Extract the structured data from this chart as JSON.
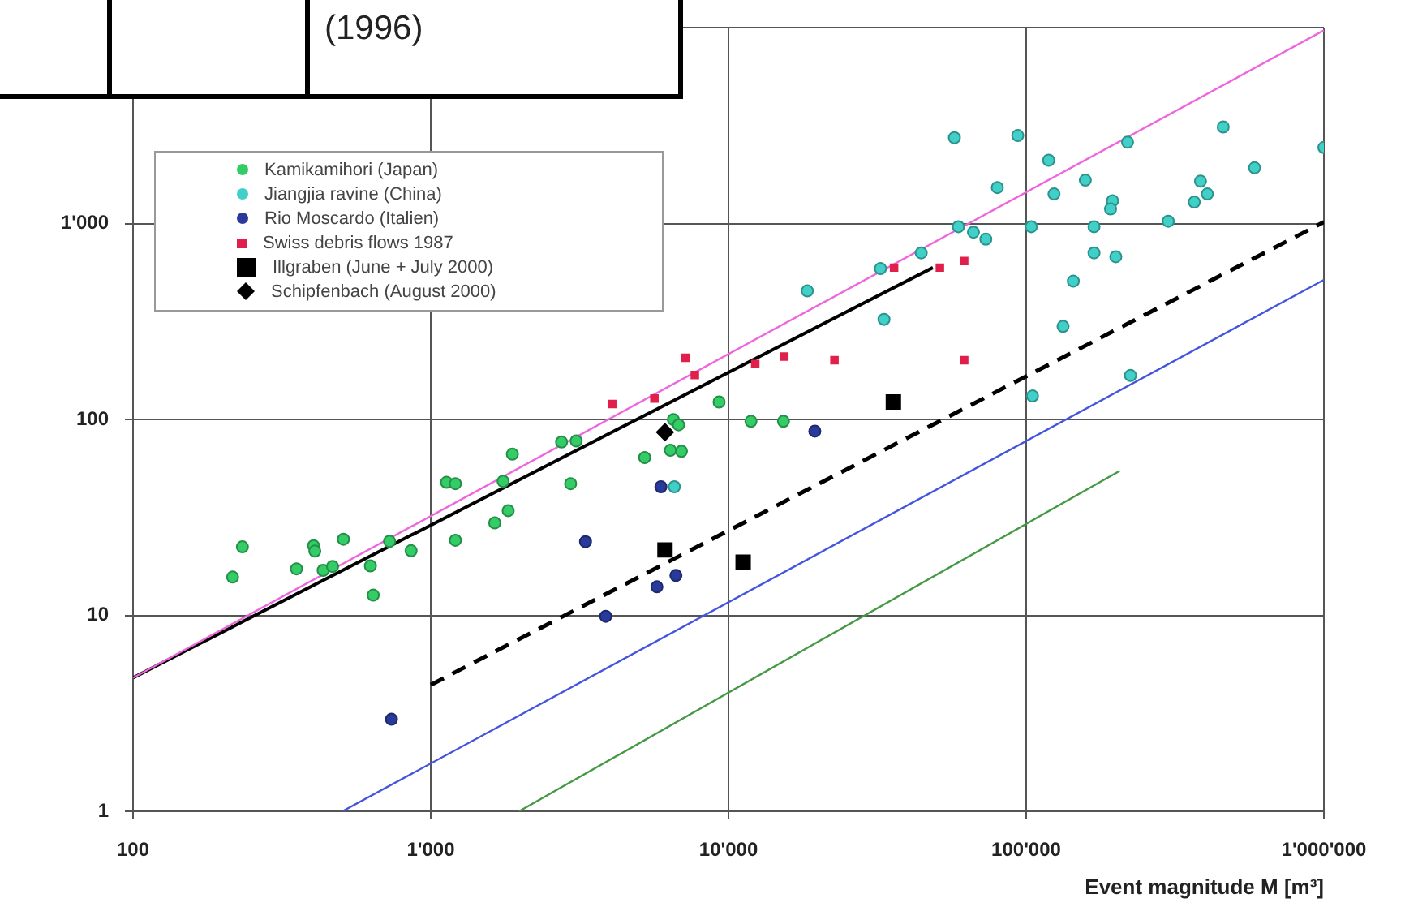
{
  "chart_data": {
    "type": "scatter",
    "xlabel": "Event magnitude M [m³]",
    "annotations": [
      "(1996)"
    ],
    "log": "xy",
    "grid": true,
    "legend": "top left",
    "xlim": [
      100,
      1000000
    ],
    "xticks": [
      100,
      {
        "value": 1000,
        "label": "1'000"
      },
      {
        "value": 10000,
        "label": "10'000"
      },
      {
        "value": 100000,
        "label": "100'000"
      },
      {
        "value": 1000000,
        "label": "1'000'000"
      }
    ],
    "ylim": [
      1,
      10000
    ],
    "yticks": [
      1,
      10,
      100,
      {
        "value": 1000,
        "label": "1'000"
      },
      {
        "value": 10000,
        "label": null
      }
    ],
    "series": [
      {
        "name": "Kamikamihori (Japan)",
        "color": "#33cc66",
        "marker": "circle",
        "x": [
          216,
          233,
          354,
          404,
          408,
          435,
          468,
          509,
          627,
          641,
          727,
          859,
          1130,
          1210,
          1210,
          1640,
          1750,
          1820,
          1880,
          2750,
          3080,
          2950,
          9300,
          6530,
          6800,
          5230,
          6380,
          6950,
          11900,
          15300
        ],
        "values": [
          15.7,
          22.4,
          17.3,
          22.7,
          21.3,
          17,
          17.8,
          24.5,
          17.9,
          12.7,
          23.9,
          21.4,
          47.8,
          47.1,
          24.2,
          29.7,
          48.4,
          34.3,
          66.6,
          76.8,
          77.8,
          47.1,
          123,
          100,
          94,
          64,
          69.7,
          68.9,
          98,
          98
        ]
      },
      {
        "name": "Jiangjia ravine (China)",
        "color": "#40d0c8",
        "marker": "circle",
        "x": [
          6580,
          18400,
          33300,
          32400,
          57400,
          93700,
          219000,
          459000,
          1000000,
          119000,
          80000,
          158000,
          124000,
          585000,
          385000,
          406000,
          367000,
          195000,
          192000,
          300000,
          59200,
          66500,
          73200,
          104000,
          169000,
          169000,
          200000,
          144000,
          133000,
          224000,
          105000,
          44400
        ],
        "values": [
          45.4,
          454,
          325,
          590,
          2750,
          2820,
          2610,
          3120,
          2450,
          2110,
          1530,
          1670,
          1420,
          1930,
          1650,
          1420,
          1290,
          1310,
          1190,
          1030,
          966,
          906,
          834,
          966,
          966,
          710,
          679,
          509,
          299,
          168,
          132,
          710
        ]
      },
      {
        "name": "Rio Moscardo (Italien)",
        "color": "#2a3a9a",
        "marker": "circle",
        "x": [
          738,
          3310,
          3870,
          5750,
          6660,
          5930,
          19500
        ],
        "values": [
          2.95,
          23.8,
          9.9,
          14,
          16,
          45.4,
          87.3
        ]
      },
      {
        "name": "Swiss debris flows 1987",
        "color": "#e0204a",
        "marker": "square",
        "x": [
          4070,
          5640,
          7160,
          7710,
          12300,
          15400,
          22700,
          36000,
          51300,
          61900,
          61900
        ],
        "values": [
          120,
          128,
          207,
          169,
          192,
          210,
          201,
          597,
          597,
          645,
          201
        ]
      },
      {
        "name": "Illgraben (June + July 2000)",
        "color": "#000000",
        "marker": "square",
        "x": [
          35800,
          6120,
          11200
        ],
        "values": [
          123,
          21.6,
          18.7
        ]
      },
      {
        "name": "Schipfenbach (August 2000)",
        "color": "#000000",
        "marker": "diamond",
        "x": [
          6120
        ],
        "values": [
          86.2
        ]
      },
      {
        "type": "line",
        "color": "#ee66dd",
        "marker": "none",
        "line_style": "solid",
        "x": [
          100,
          1000000
        ],
        "values": [
          4.8,
          9720
        ]
      },
      {
        "type": "line",
        "color": "#000000",
        "marker": "none",
        "line_style": "solid",
        "x": [
          100,
          48600
        ],
        "values": [
          4.8,
          597
        ]
      },
      {
        "type": "line",
        "color": "#000000",
        "marker": "none",
        "line_style": "dashed",
        "x": [
          1000,
          1000000
        ],
        "values": [
          4.42,
          1020
        ]
      },
      {
        "type": "line",
        "color": "#4455dd",
        "marker": "none",
        "line_style": "solid",
        "x": [
          505,
          1000000
        ],
        "values": [
          1,
          517
        ]
      },
      {
        "type": "line",
        "color": "#449944",
        "marker": "none",
        "line_style": "solid",
        "x": [
          1980,
          206000
        ],
        "values": [
          1,
          54.7
        ]
      }
    ]
  }
}
